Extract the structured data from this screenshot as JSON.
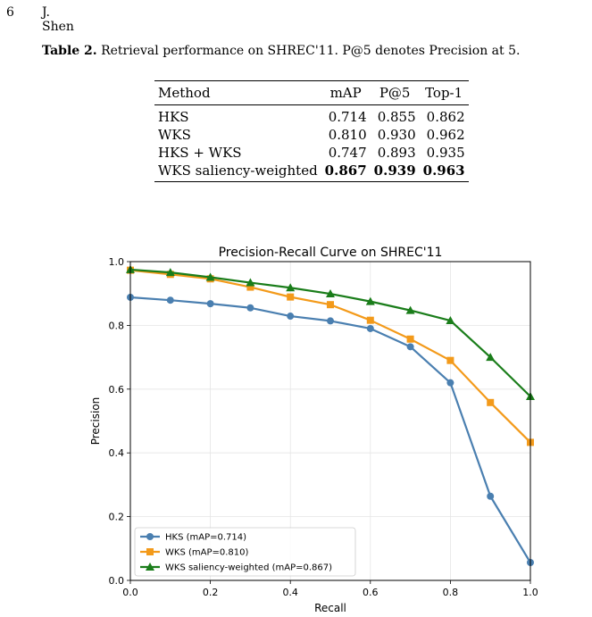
{
  "header": {
    "page_number": "6",
    "author": "J. Shen"
  },
  "table": {
    "caption_label": "Table 2.",
    "caption_text": " Retrieval performance on SHREC'11. P@5 denotes Precision at 5.",
    "columns": [
      "Method",
      "mAP",
      "P@5",
      "Top-1"
    ],
    "rows": [
      {
        "method": "HKS",
        "map": "0.714",
        "p5": "0.855",
        "top1": "0.862"
      },
      {
        "method": "WKS",
        "map": "0.810",
        "p5": "0.930",
        "top1": "0.962"
      },
      {
        "method": "HKS + WKS",
        "map": "0.747",
        "p5": "0.893",
        "top1": "0.935"
      },
      {
        "method": "WKS saliency-weighted",
        "map": "0.867",
        "p5": "0.939",
        "top1": "0.963"
      }
    ]
  },
  "chart_data": {
    "type": "line",
    "title": "Precision-Recall Curve on SHREC'11",
    "xlabel": "Recall",
    "ylabel": "Precision",
    "xlim": [
      0,
      1
    ],
    "ylim": [
      0,
      1
    ],
    "xticks": [
      "0.0",
      "0.2",
      "0.4",
      "0.6",
      "0.8",
      "1.0"
    ],
    "yticks": [
      "0.0",
      "0.2",
      "0.4",
      "0.6",
      "0.8",
      "1.0"
    ],
    "grid": true,
    "legend_position": "bottom-left",
    "x": [
      0.0,
      0.1,
      0.2,
      0.3,
      0.4,
      0.5,
      0.6,
      0.7,
      0.8,
      0.9,
      1.0
    ],
    "series": [
      {
        "name": "HKS (mAP=0.714)",
        "color": "#4a7fb0",
        "marker": "circle",
        "values": [
          0.888,
          0.879,
          0.868,
          0.855,
          0.829,
          0.814,
          0.79,
          0.733,
          0.62,
          0.264,
          0.056
        ]
      },
      {
        "name": "WKS (mAP=0.810)",
        "color": "#f39a1a",
        "marker": "square",
        "values": [
          0.973,
          0.96,
          0.946,
          0.92,
          0.889,
          0.865,
          0.816,
          0.757,
          0.69,
          0.558,
          0.433
        ]
      },
      {
        "name": "WKS saliency-weighted (mAP=0.867)",
        "color": "#1a7d1a",
        "marker": "triangle",
        "values": [
          0.975,
          0.966,
          0.951,
          0.934,
          0.918,
          0.899,
          0.875,
          0.847,
          0.815,
          0.7,
          0.577
        ]
      }
    ]
  }
}
